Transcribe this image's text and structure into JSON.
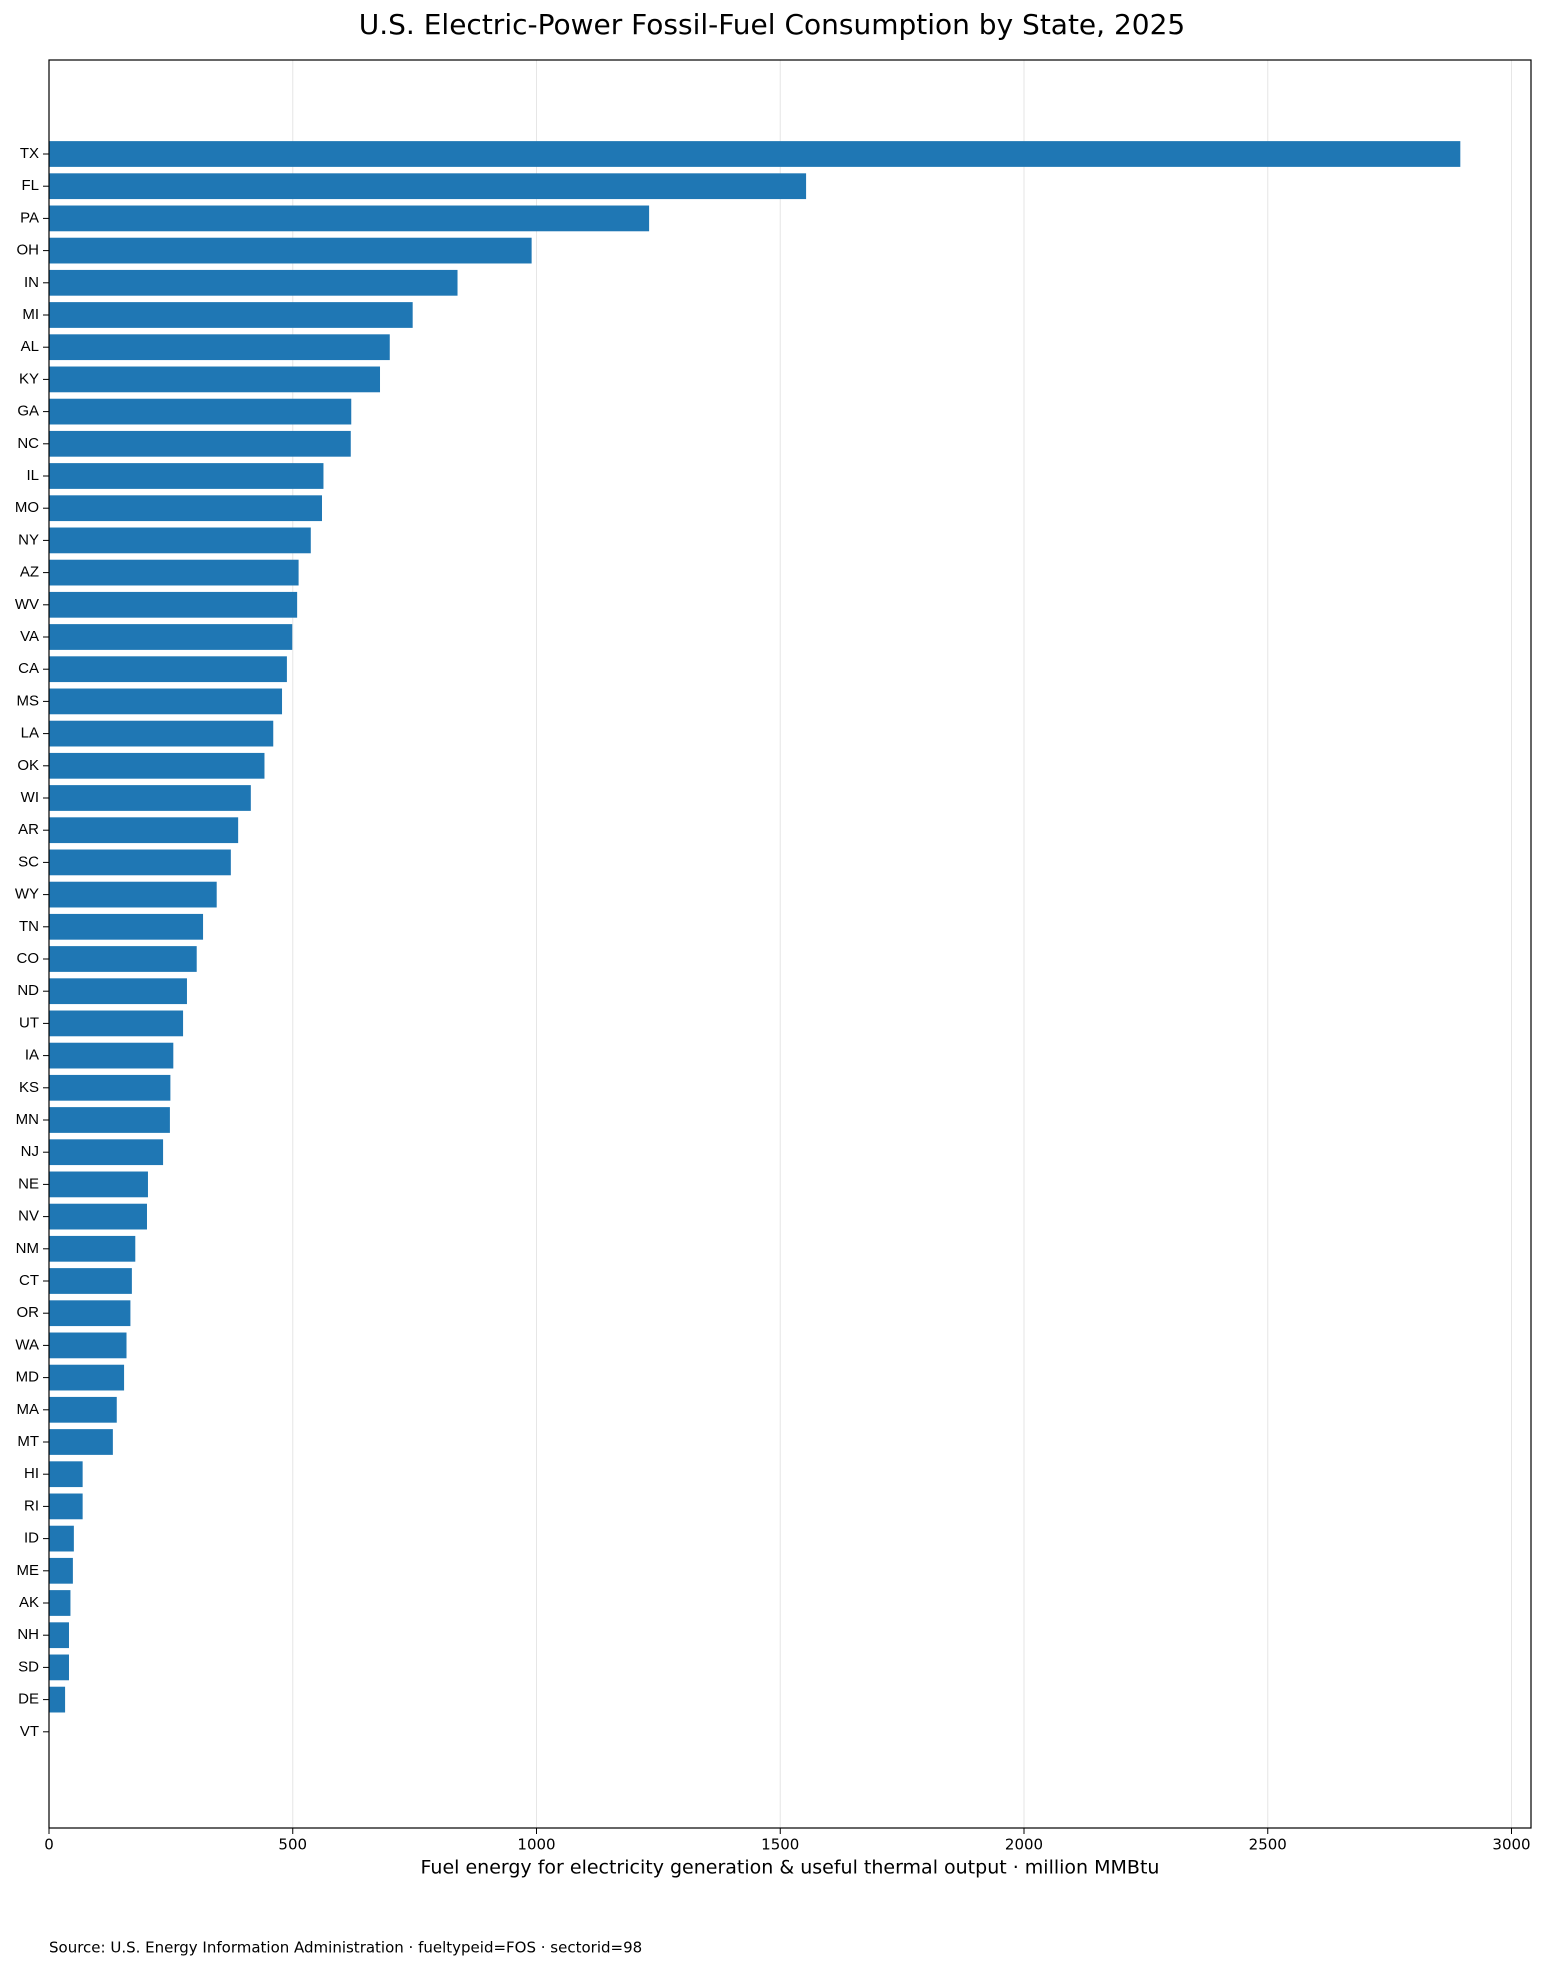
{
  "chart_data": {
    "type": "barh",
    "title": "U.S. Electric-Power Fossil-Fuel Consumption by State, 2025",
    "xlabel": "Fuel energy for electricity generation & useful thermal output · million MMBtu",
    "source": "Source: U.S. Energy Information Administration · fueltypeid=FOS · sectorid=98",
    "categories": [
      "TX",
      "FL",
      "PA",
      "OH",
      "IN",
      "MI",
      "AL",
      "KY",
      "GA",
      "NC",
      "IL",
      "MO",
      "NY",
      "AZ",
      "WV",
      "VA",
      "CA",
      "MS",
      "LA",
      "OK",
      "WI",
      "AR",
      "SC",
      "WY",
      "TN",
      "CO",
      "ND",
      "UT",
      "IA",
      "KS",
      "MN",
      "NJ",
      "NE",
      "NV",
      "NM",
      "CT",
      "OR",
      "WA",
      "MD",
      "MA",
      "MT",
      "HI",
      "RI",
      "ID",
      "ME",
      "AK",
      "NH",
      "SD",
      "DE",
      "VT"
    ],
    "values": [
      2895,
      1553,
      1231,
      990,
      838,
      746,
      699,
      679,
      620,
      619,
      563,
      560,
      537,
      512,
      509,
      499,
      488,
      478,
      460,
      442,
      414,
      388,
      373,
      344,
      316,
      303,
      283,
      275,
      255,
      249,
      248,
      234,
      203,
      201,
      177,
      170,
      167,
      159,
      154,
      139,
      131,
      69,
      69,
      51,
      49,
      44,
      41,
      41,
      33,
      0
    ],
    "color": "#1f77b4",
    "xlim": [
      0,
      3040
    ],
    "xticks": [
      0,
      500,
      1000,
      1500,
      2000,
      2500,
      3000
    ],
    "grid": true
  }
}
